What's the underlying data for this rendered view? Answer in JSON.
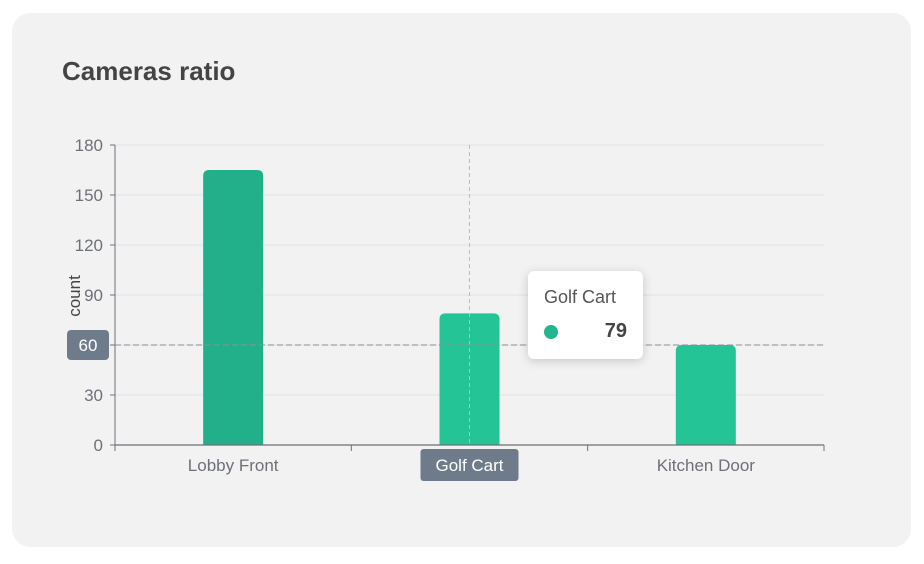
{
  "card": {
    "title": "Cameras ratio"
  },
  "chart_data": {
    "type": "bar",
    "categories": [
      "Lobby Front",
      "Golf Cart",
      "Kitchen Door"
    ],
    "values": [
      165,
      79,
      60
    ],
    "ylabel": "count",
    "ylim": [
      0,
      180
    ],
    "yticks": [
      0,
      30,
      60,
      90,
      120,
      150,
      180
    ],
    "grid": true,
    "colors": [
      "#22b08a",
      "#24c496",
      "#24c496"
    ],
    "crosshair": {
      "category": "Golf Cart",
      "y_label": "60"
    },
    "tooltip": {
      "title": "Golf Cart",
      "value": "79",
      "marker_color": "#22b58e"
    }
  }
}
